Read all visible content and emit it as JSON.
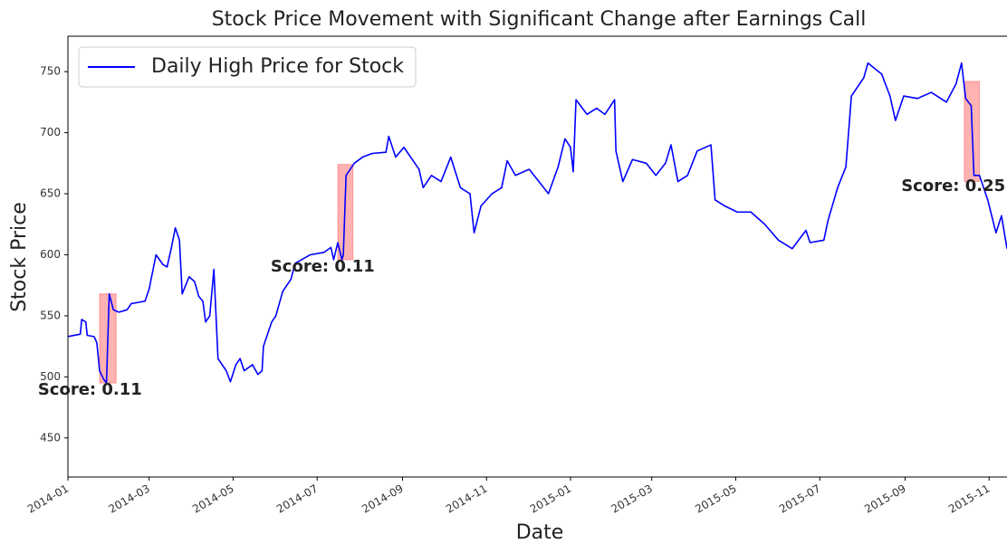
{
  "chart_data": {
    "type": "line",
    "title": "Stock Price Movement with Significant Change after Earnings Call",
    "xlabel": "Date",
    "ylabel": "Stock Price",
    "series": [
      {
        "name": "Daily High Price for Stock",
        "color": "#0000ff",
        "x": [
          "2014-01-01",
          "2014-01-10",
          "2014-01-11",
          "2014-01-14",
          "2014-01-15",
          "2014-01-20",
          "2014-01-22",
          "2014-01-24",
          "2014-01-27",
          "2014-01-29",
          "2014-01-31",
          "2014-02-03",
          "2014-02-07",
          "2014-02-13",
          "2014-02-16",
          "2014-02-26",
          "2014-03-01",
          "2014-03-06",
          "2014-03-11",
          "2014-03-14",
          "2014-03-17",
          "2014-03-20",
          "2014-03-23",
          "2014-03-25",
          "2014-03-30",
          "2014-04-03",
          "2014-04-06",
          "2014-04-09",
          "2014-04-11",
          "2014-04-14",
          "2014-04-17",
          "2014-04-20",
          "2014-04-26",
          "2014-04-29",
          "2014-05-03",
          "2014-05-06",
          "2014-05-09",
          "2014-05-15",
          "2014-05-19",
          "2014-05-22",
          "2014-05-23",
          "2014-05-29",
          "2014-06-01",
          "2014-06-06",
          "2014-06-12",
          "2014-06-15",
          "2014-06-26",
          "2014-07-06",
          "2014-07-11",
          "2014-07-13",
          "2014-07-16",
          "2014-07-19",
          "2014-07-20",
          "2014-07-22",
          "2014-07-28",
          "2014-08-03",
          "2014-08-10",
          "2014-08-20",
          "2014-08-22",
          "2014-08-27",
          "2014-09-02",
          "2014-09-13",
          "2014-09-16",
          "2014-09-22",
          "2014-09-29",
          "2014-10-06",
          "2014-10-13",
          "2014-10-20",
          "2014-10-23",
          "2014-10-28",
          "2014-11-05",
          "2014-11-12",
          "2014-11-16",
          "2014-11-22",
          "2014-12-02",
          "2014-12-09",
          "2014-12-16",
          "2014-12-23",
          "2014-12-28",
          "2015-01-01",
          "2015-01-03",
          "2015-01-05",
          "2015-01-13",
          "2015-01-20",
          "2015-01-26",
          "2015-02-02",
          "2015-02-03",
          "2015-02-08",
          "2015-02-15",
          "2015-02-25",
          "2015-03-04",
          "2015-03-11",
          "2015-03-15",
          "2015-03-20",
          "2015-03-27",
          "2015-04-03",
          "2015-04-13",
          "2015-04-16",
          "2015-04-23",
          "2015-05-02",
          "2015-05-12",
          "2015-05-22",
          "2015-06-01",
          "2015-06-11",
          "2015-06-21",
          "2015-06-24",
          "2015-07-04",
          "2015-07-07",
          "2015-07-14",
          "2015-07-20",
          "2015-07-24",
          "2015-08-02",
          "2015-08-05",
          "2015-08-15",
          "2015-08-21",
          "2015-08-25",
          "2015-08-31",
          "2015-09-10",
          "2015-09-20",
          "2015-10-01",
          "2015-10-08",
          "2015-10-12",
          "2015-10-15",
          "2015-10-19",
          "2015-10-21",
          "2015-10-25",
          "2015-10-31",
          "2015-11-06",
          "2015-11-10",
          "2015-11-14"
        ],
        "values": [
          533,
          535,
          547,
          545,
          534,
          533,
          528,
          505,
          498,
          495,
          568,
          555,
          553,
          555,
          560,
          562,
          572,
          600,
          592,
          590,
          605,
          622,
          612,
          568,
          582,
          578,
          566,
          562,
          545,
          550,
          588,
          515,
          505,
          496,
          510,
          515,
          505,
          510,
          502,
          505,
          525,
          545,
          550,
          570,
          580,
          593,
          600,
          602,
          606,
          596,
          610,
          596,
          600,
          665,
          675,
          680,
          683,
          684,
          697,
          680,
          688,
          670,
          655,
          665,
          660,
          680,
          655,
          650,
          618,
          640,
          650,
          655,
          677,
          665,
          670,
          660,
          650,
          672,
          695,
          688,
          668,
          727,
          715,
          720,
          715,
          727,
          685,
          660,
          678,
          675,
          665,
          675,
          690,
          660,
          665,
          685,
          690,
          645,
          640,
          635,
          635,
          625,
          612,
          605,
          620,
          610,
          612,
          628,
          655,
          672,
          730,
          745,
          757,
          748,
          730,
          710,
          730,
          728,
          733,
          725,
          740,
          757,
          728,
          722,
          665,
          665,
          645,
          618,
          632,
          605
        ]
      }
    ],
    "highlights": [
      {
        "x0": "2014-01-24",
        "x1": "2014-02-05",
        "y0": 495,
        "y1": 568
      },
      {
        "x0": "2014-07-16",
        "x1": "2014-07-27",
        "y0": 596,
        "y1": 674
      },
      {
        "x0": "2015-10-14",
        "x1": "2015-10-25",
        "y0": 660,
        "y1": 742
      }
    ],
    "highlight_color": "#ff0000",
    "annotations": [
      {
        "text": "Score: 0.11",
        "x": "2014-01-17",
        "y": 489
      },
      {
        "text": "Score: 0.11",
        "x": "2014-07-05",
        "y": 590
      },
      {
        "text": "Score: 0.25",
        "x": "2015-10-06",
        "y": 656
      }
    ],
    "xlim": [
      "2014-01",
      "2015-11-14"
    ],
    "xticks": [
      "2014-01",
      "2014-03",
      "2014-05",
      "2014-07",
      "2014-09",
      "2014-11",
      "2015-01",
      "2015-03",
      "2015-05",
      "2015-07",
      "2015-09",
      "2015-11"
    ],
    "ylim": [
      418,
      779
    ],
    "yticks": [
      450,
      500,
      550,
      600,
      650,
      700,
      750
    ],
    "grid": false,
    "legend": "upper left"
  }
}
